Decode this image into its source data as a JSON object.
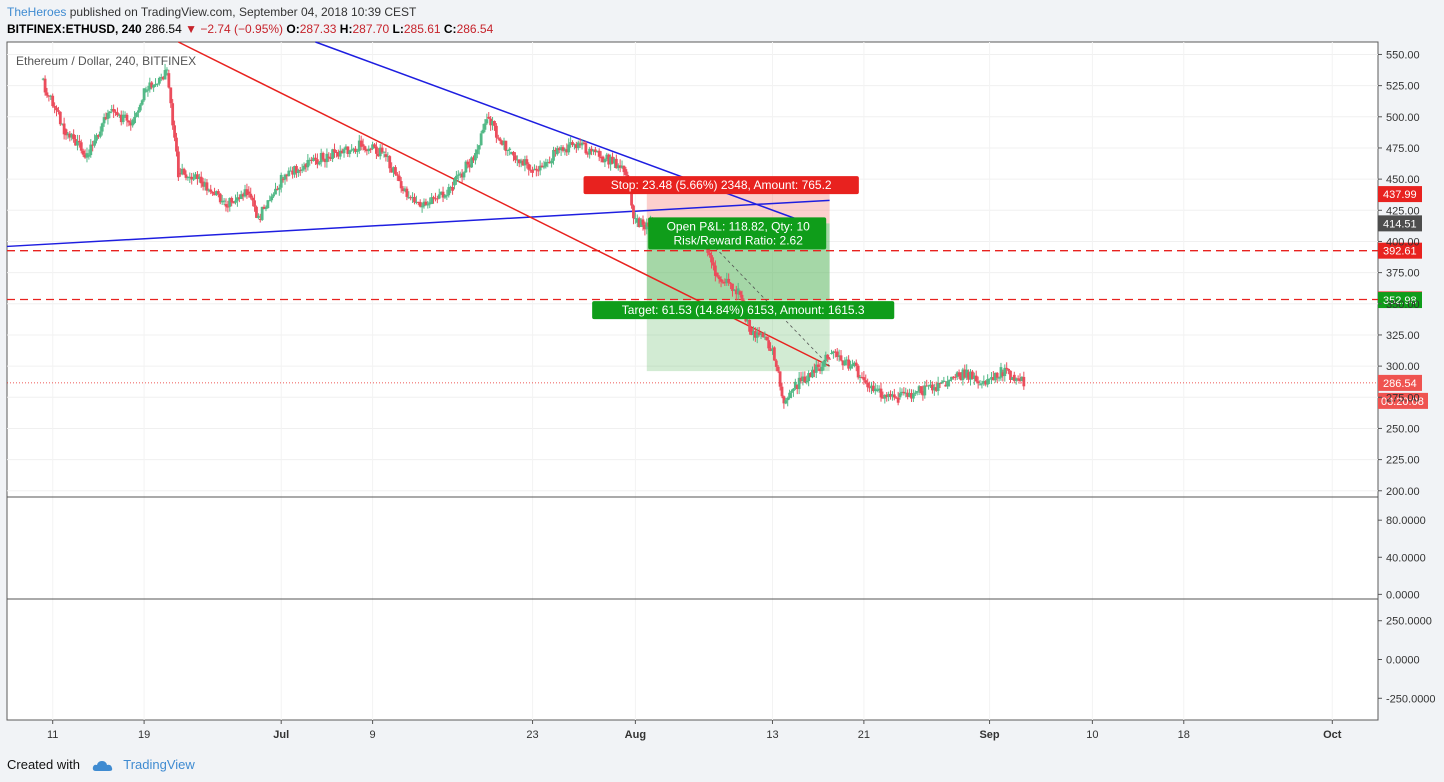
{
  "header": {
    "author": "TheHeroes",
    "published": "published on TradingView.com, September 04, 2018 10:39 CEST",
    "symbol": "BITFINEX:ETHUSD, 240",
    "last": "286.54",
    "change": "−2.74 (−0.95%)",
    "open_label": "O:",
    "open": "287.33",
    "high_label": "H:",
    "high": "287.70",
    "low_label": "L:",
    "low": "285.61",
    "close_label": "C:",
    "close": "286.54"
  },
  "footer": {
    "created_with": "Created with",
    "brand": "TradingView"
  },
  "chart_data": {
    "type": "candlestick",
    "title": "Ethereum / Dollar, 240, BITFINEX",
    "ylim": [
      195,
      560
    ],
    "y_ticks": [
      "550.00",
      "525.00",
      "500.00",
      "475.00",
      "450.00",
      "425.00",
      "400.00",
      "375.00",
      "350.00",
      "325.00",
      "300.00",
      "275.00",
      "250.00",
      "225.00",
      "200.00"
    ],
    "x_ticks": [
      "11",
      "19",
      "Jul",
      "9",
      "23",
      "Aug",
      "13",
      "21",
      "Sep",
      "10",
      "18",
      "Oct"
    ],
    "x_range": [
      "2018-06-07",
      "2018-10-05"
    ],
    "price_series": [
      {
        "date": "2018-06-10",
        "close": 530
      },
      {
        "date": "2018-06-12",
        "close": 490
      },
      {
        "date": "2018-06-14",
        "close": 468
      },
      {
        "date": "2018-06-16",
        "close": 505
      },
      {
        "date": "2018-06-18",
        "close": 495
      },
      {
        "date": "2018-06-19",
        "close": 520
      },
      {
        "date": "2018-06-21",
        "close": 535
      },
      {
        "date": "2018-06-22",
        "close": 455
      },
      {
        "date": "2018-06-24",
        "close": 448
      },
      {
        "date": "2018-06-26",
        "close": 430
      },
      {
        "date": "2018-06-28",
        "close": 440
      },
      {
        "date": "2018-06-29",
        "close": 418
      },
      {
        "date": "2018-07-01",
        "close": 450
      },
      {
        "date": "2018-07-03",
        "close": 462
      },
      {
        "date": "2018-07-05",
        "close": 468
      },
      {
        "date": "2018-07-08",
        "close": 478
      },
      {
        "date": "2018-07-10",
        "close": 470
      },
      {
        "date": "2018-07-12",
        "close": 435
      },
      {
        "date": "2018-07-14",
        "close": 430
      },
      {
        "date": "2018-07-16",
        "close": 445
      },
      {
        "date": "2018-07-18",
        "close": 470
      },
      {
        "date": "2018-07-19",
        "close": 500
      },
      {
        "date": "2018-07-21",
        "close": 470
      },
      {
        "date": "2018-07-23",
        "close": 458
      },
      {
        "date": "2018-07-25",
        "close": 470
      },
      {
        "date": "2018-07-27",
        "close": 478
      },
      {
        "date": "2018-07-29",
        "close": 468
      },
      {
        "date": "2018-07-31",
        "close": 458
      },
      {
        "date": "2018-08-01",
        "close": 415
      },
      {
        "date": "2018-08-03",
        "close": 410
      },
      {
        "date": "2018-08-05",
        "close": 408
      },
      {
        "date": "2018-08-07",
        "close": 400
      },
      {
        "date": "2018-08-08",
        "close": 375
      },
      {
        "date": "2018-08-10",
        "close": 360
      },
      {
        "date": "2018-08-11",
        "close": 330
      },
      {
        "date": "2018-08-13",
        "close": 315
      },
      {
        "date": "2018-08-14",
        "close": 270
      },
      {
        "date": "2018-08-15",
        "close": 285
      },
      {
        "date": "2018-08-17",
        "close": 298
      },
      {
        "date": "2018-08-18",
        "close": 310
      },
      {
        "date": "2018-08-20",
        "close": 300
      },
      {
        "date": "2018-08-22",
        "close": 280
      },
      {
        "date": "2018-08-24",
        "close": 275
      },
      {
        "date": "2018-08-26",
        "close": 280
      },
      {
        "date": "2018-08-28",
        "close": 285
      },
      {
        "date": "2018-08-30",
        "close": 295
      },
      {
        "date": "2018-08-31",
        "close": 285
      },
      {
        "date": "2018-09-02",
        "close": 295
      },
      {
        "date": "2018-09-03",
        "close": 293
      },
      {
        "date": "2018-09-04",
        "close": 286.54
      }
    ],
    "trendlines": [
      {
        "color": "#1e1ee0",
        "from": {
          "date": "2018-06-07",
          "price": 396
        },
        "to": {
          "date": "2018-08-18",
          "price": 433
        }
      },
      {
        "color": "#1e1ee0",
        "from": {
          "date": "2018-07-04",
          "price": 560
        },
        "to": {
          "date": "2018-08-16",
          "price": 415
        }
      },
      {
        "color": "#e8221f",
        "from": {
          "date": "2018-06-22",
          "price": 560
        },
        "to": {
          "date": "2018-08-18",
          "price": 300
        }
      }
    ],
    "horizontal_lines": [
      {
        "price": 392.61,
        "color": "#e8221f",
        "style": "dashed"
      },
      {
        "price": 353.46,
        "color": "#e8221f",
        "style": "dashed"
      },
      {
        "price": 286.54,
        "color": "#e8221f",
        "style": "dotted"
      }
    ],
    "position": {
      "start": "2018-08-02",
      "end": "2018-08-18",
      "entry": 414.51,
      "stop": 437.99,
      "target": 352.98,
      "low_box": 296,
      "stop_label": "Stop: 23.48 (5.66%) 2348, Amount: 765.2",
      "open_pl_label": "Open P&L: 118.82, Qty: 10",
      "rr_label": "Risk/Reward Ratio: 2.62",
      "target_label": "Target: 61.53 (14.84%) 6153, Amount: 1615.3"
    },
    "price_tags": [
      {
        "text": "437.99",
        "price": 437.99,
        "bg": "#e8221f"
      },
      {
        "text": "414.51",
        "price": 414.51,
        "bg": "#4d4d4d"
      },
      {
        "text": "392.61",
        "price": 392.61,
        "bg": "#e8221f"
      },
      {
        "text": "353.46",
        "price": 353.46,
        "bg": "#e8221f"
      },
      {
        "text": "352.98",
        "price": 352.98,
        "bg": "#0f9d1a"
      },
      {
        "text": "286.54",
        "price": 286.54,
        "bg": "#ef5350"
      }
    ],
    "countdown": "03:20:08",
    "panel2": {
      "ylim": [
        -5,
        105
      ],
      "ticks": [
        "80.0000",
        "40.0000",
        "0.0000"
      ]
    },
    "panel3": {
      "ylim": [
        -390,
        390
      ],
      "ticks": [
        "250.0000",
        "0.0000",
        "-250.0000"
      ]
    }
  }
}
